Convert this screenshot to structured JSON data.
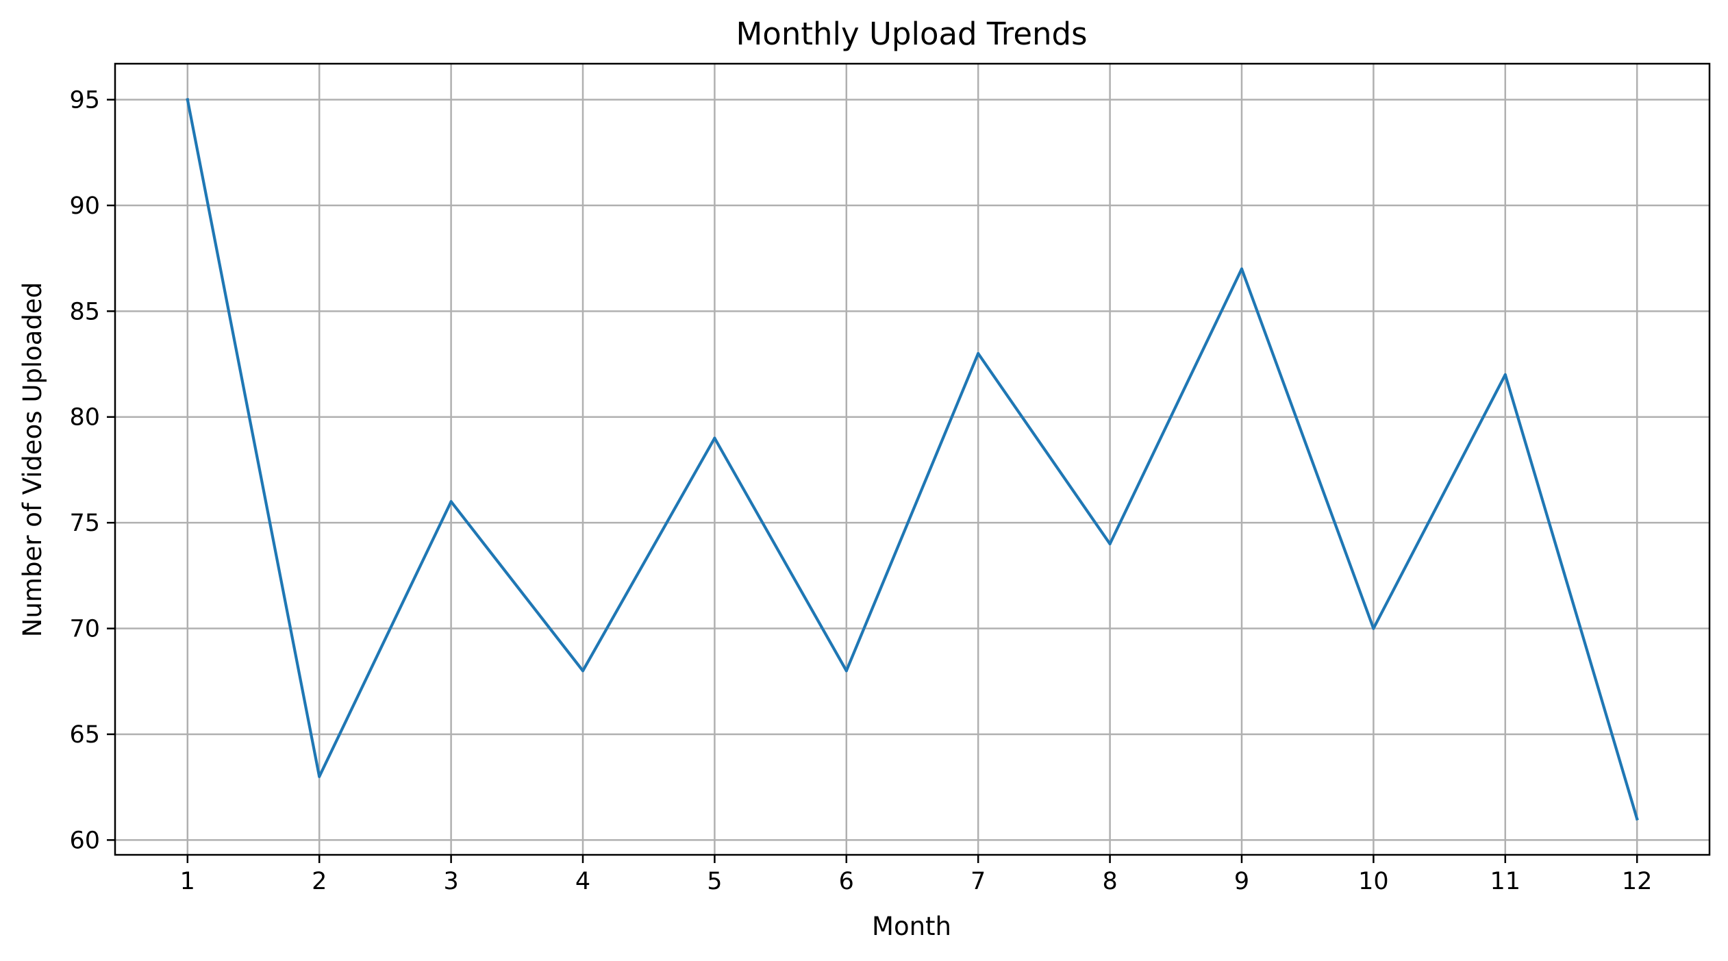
{
  "chart_data": {
    "type": "line",
    "title": "Monthly Upload Trends",
    "xlabel": "Month",
    "ylabel": "Number of Videos Uploaded",
    "x": [
      1,
      2,
      3,
      4,
      5,
      6,
      7,
      8,
      9,
      10,
      11,
      12
    ],
    "series": [
      {
        "values": [
          95,
          63,
          76,
          68,
          79,
          68,
          83,
          74,
          87,
          70,
          82,
          61
        ],
        "color": "#1f77b4"
      }
    ],
    "xlim": [
      0.45,
      12.55
    ],
    "ylim": [
      59.3,
      96.7
    ],
    "xticks": [
      1,
      2,
      3,
      4,
      5,
      6,
      7,
      8,
      9,
      10,
      11,
      12
    ],
    "yticks": [
      60,
      65,
      70,
      75,
      80,
      85,
      90,
      95
    ],
    "grid": true,
    "legend": "none"
  }
}
